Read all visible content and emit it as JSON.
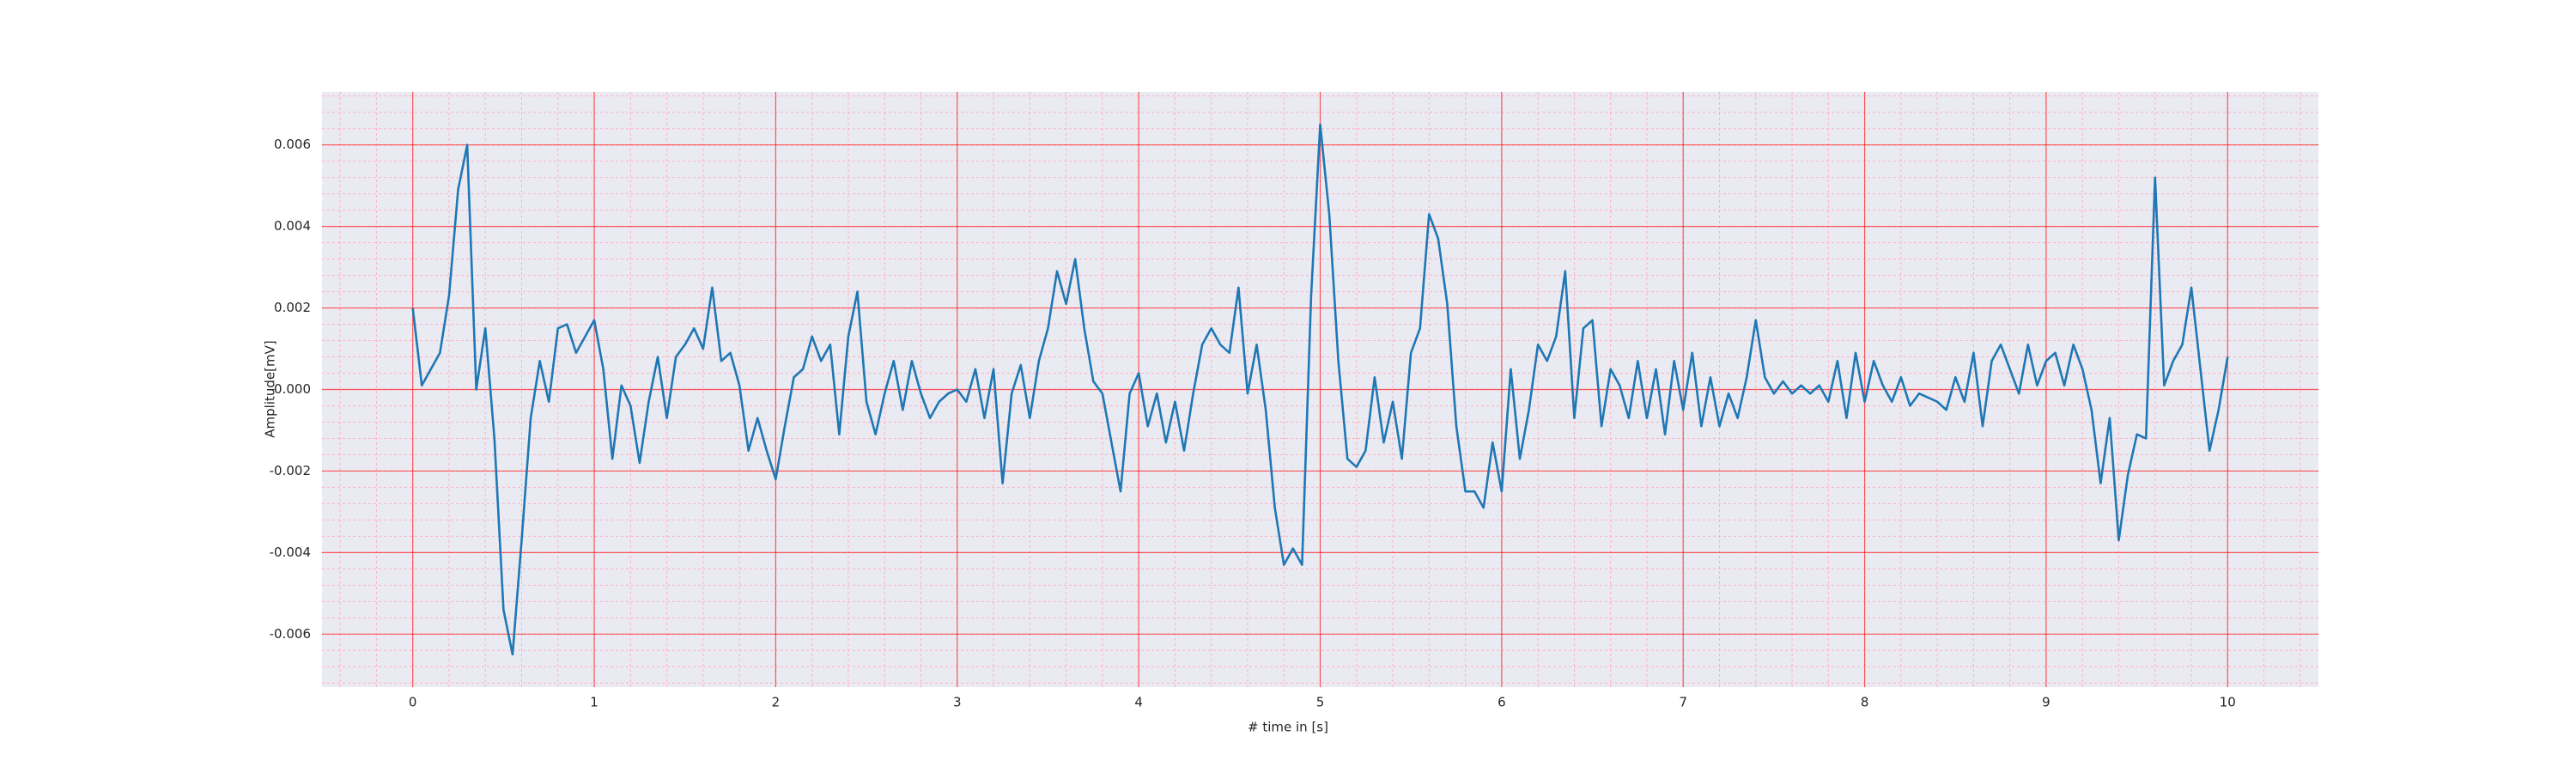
{
  "chart_data": {
    "type": "line",
    "xlabel": "# time in [s]",
    "ylabel": "Amplitude[mV]",
    "color": "#1f77b4",
    "x": [
      0,
      0.05,
      0.1,
      0.15,
      0.2,
      0.25,
      0.3,
      0.35,
      0.4,
      0.45,
      0.5,
      0.55,
      0.6,
      0.65,
      0.7,
      0.75,
      0.8,
      0.85,
      0.9,
      0.95,
      1,
      1.05,
      1.1,
      1.15,
      1.2,
      1.25,
      1.3,
      1.35,
      1.4,
      1.45,
      1.5,
      1.55,
      1.6,
      1.65,
      1.7,
      1.75,
      1.8,
      1.85,
      1.9,
      1.95,
      2,
      2.05,
      2.1,
      2.15,
      2.2,
      2.25,
      2.3,
      2.35,
      2.4,
      2.45,
      2.5,
      2.55,
      2.6,
      2.65,
      2.7,
      2.75,
      2.8,
      2.85,
      2.9,
      2.95,
      3,
      3.05,
      3.1,
      3.15,
      3.2,
      3.25,
      3.3,
      3.35,
      3.4,
      3.45,
      3.5,
      3.55,
      3.6,
      3.65,
      3.7,
      3.75,
      3.8,
      3.85,
      3.9,
      3.95,
      4,
      4.05,
      4.1,
      4.15,
      4.2,
      4.25,
      4.3,
      4.35,
      4.4,
      4.45,
      4.5,
      4.55,
      4.6,
      4.65,
      4.7,
      4.75,
      4.8,
      4.85,
      4.9,
      4.95,
      5,
      5.05,
      5.1,
      5.15,
      5.2,
      5.25,
      5.3,
      5.35,
      5.4,
      5.45,
      5.5,
      5.55,
      5.6,
      5.65,
      5.7,
      5.75,
      5.8,
      5.85,
      5.9,
      5.95,
      6,
      6.05,
      6.1,
      6.15,
      6.2,
      6.25,
      6.3,
      6.35,
      6.4,
      6.45,
      6.5,
      6.55,
      6.6,
      6.65,
      6.7,
      6.75,
      6.8,
      6.85,
      6.9,
      6.95,
      7,
      7.05,
      7.1,
      7.15,
      7.2,
      7.25,
      7.3,
      7.35,
      7.4,
      7.45,
      7.5,
      7.55,
      7.6,
      7.65,
      7.7,
      7.75,
      7.8,
      7.85,
      7.9,
      7.95,
      8,
      8.05,
      8.1,
      8.15,
      8.2,
      8.25,
      8.3,
      8.35,
      8.4,
      8.45,
      8.5,
      8.55,
      8.6,
      8.65,
      8.7,
      8.75,
      8.8,
      8.85,
      8.9,
      8.95,
      9,
      9.05,
      9.1,
      9.15,
      9.2,
      9.25,
      9.3,
      9.35,
      9.4,
      9.45,
      9.5,
      9.55,
      9.6,
      9.65,
      9.7,
      9.75,
      9.8,
      9.85,
      9.9,
      9.95,
      10
    ],
    "values": [
      0.002,
      0.0001,
      0.0005,
      0.0009,
      0.0023,
      0.0049,
      0.006,
      0,
      0.0015,
      -0.0012,
      -0.0054,
      -0.0065,
      -0.0037,
      -0.0007,
      0.0007,
      -0.0003,
      0.0015,
      0.0016,
      0.0009,
      0.0013,
      0.0017,
      0.0005,
      -0.0017,
      0.0001,
      -0.0004,
      -0.0018,
      -0.0003,
      0.0008,
      -0.0007,
      0.0008,
      0.0011,
      0.0015,
      0.001,
      0.0025,
      0.0007,
      0.0009,
      0.0001,
      -0.0015,
      -0.0007,
      -0.0015,
      -0.0022,
      -0.0009,
      0.0003,
      0.0005,
      0.0013,
      0.0007,
      0.0011,
      -0.0011,
      0.0013,
      0.0024,
      -0.0003,
      -0.0011,
      -0.0001,
      0.0007,
      -0.0005,
      0.0007,
      -0.0001,
      -0.0007,
      -0.0003,
      -0.0001,
      0,
      -0.0003,
      0.0005,
      -0.0007,
      0.0005,
      -0.0023,
      -0.0001,
      0.0006,
      -0.0007,
      0.0007,
      0.0015,
      0.0029,
      0.0021,
      0.0032,
      0.0015,
      0.0002,
      -0.0001,
      -0.0013,
      -0.0025,
      -0.0001,
      0.0004,
      -0.0009,
      -0.0001,
      -0.0013,
      -0.0003,
      -0.0015,
      -0.0001,
      0.0011,
      0.0015,
      0.0011,
      0.0009,
      0.0025,
      -0.0001,
      0.0011,
      -0.0005,
      -0.0029,
      -0.0043,
      -0.0039,
      -0.0043,
      0.0023,
      0.0065,
      0.0043,
      0.0007,
      -0.0017,
      -0.0019,
      -0.0015,
      0.0003,
      -0.0013,
      -0.0003,
      -0.0017,
      0.0009,
      0.0015,
      0.0043,
      0.0037,
      0.0021,
      -0.0009,
      -0.0025,
      -0.0025,
      -0.0029,
      -0.0013,
      -0.0025,
      0.0005,
      -0.0017,
      -0.0005,
      0.0011,
      0.0007,
      0.0013,
      0.0029,
      -0.0007,
      0.0015,
      0.0017,
      -0.0009,
      0.0005,
      0.0001,
      -0.0007,
      0.0007,
      -0.0007,
      0.0005,
      -0.0011,
      0.0007,
      -0.0005,
      0.0009,
      -0.0009,
      0.0003,
      -0.0009,
      -0.0001,
      -0.0007,
      0.0003,
      0.0017,
      0.0003,
      -0.0001,
      0.0002,
      -0.0001,
      0.0001,
      -0.0001,
      0.0001,
      -0.0003,
      0.0007,
      -0.0007,
      0.0009,
      -0.0003,
      0.0007,
      0.0001,
      -0.0003,
      0.0003,
      -0.0004,
      -0.0001,
      -0.0002,
      -0.0003,
      -0.0005,
      0.0003,
      -0.0003,
      0.0009,
      -0.0009,
      0.0007,
      0.0011,
      0.0005,
      -0.0001,
      0.0011,
      0.0001,
      0.0007,
      0.0009,
      0.0001,
      0.0011,
      0.0005,
      -0.0005,
      -0.0023,
      -0.0007,
      -0.0037,
      -0.0021,
      -0.0011,
      -0.0012,
      0.0052,
      0.0001,
      0.0007,
      0.0011,
      0.0025,
      0.0005,
      -0.0015,
      -0.0005,
      0.0008
    ],
    "xlim": [
      -0.5,
      10.5
    ],
    "xticks": [
      0,
      1,
      2,
      3,
      4,
      5,
      6,
      7,
      8,
      9,
      10
    ],
    "ylim": [
      -0.0073,
      0.0073
    ],
    "yticks": [
      {
        "value": -0.006,
        "label": "-0.006"
      },
      {
        "value": -0.004,
        "label": "-0.004"
      },
      {
        "value": -0.002,
        "label": "-0.002"
      },
      {
        "value": 0,
        "label": "0.000"
      },
      {
        "value": 0.002,
        "label": "0.002"
      },
      {
        "value": 0.004,
        "label": "0.004"
      },
      {
        "value": 0.006,
        "label": "0.006"
      }
    ],
    "grid": true,
    "grid_color": "#ff0000",
    "minor_grid_color": "#ffb0c0",
    "xminor_step": 0.2,
    "yminor_step": 0.0004
  }
}
